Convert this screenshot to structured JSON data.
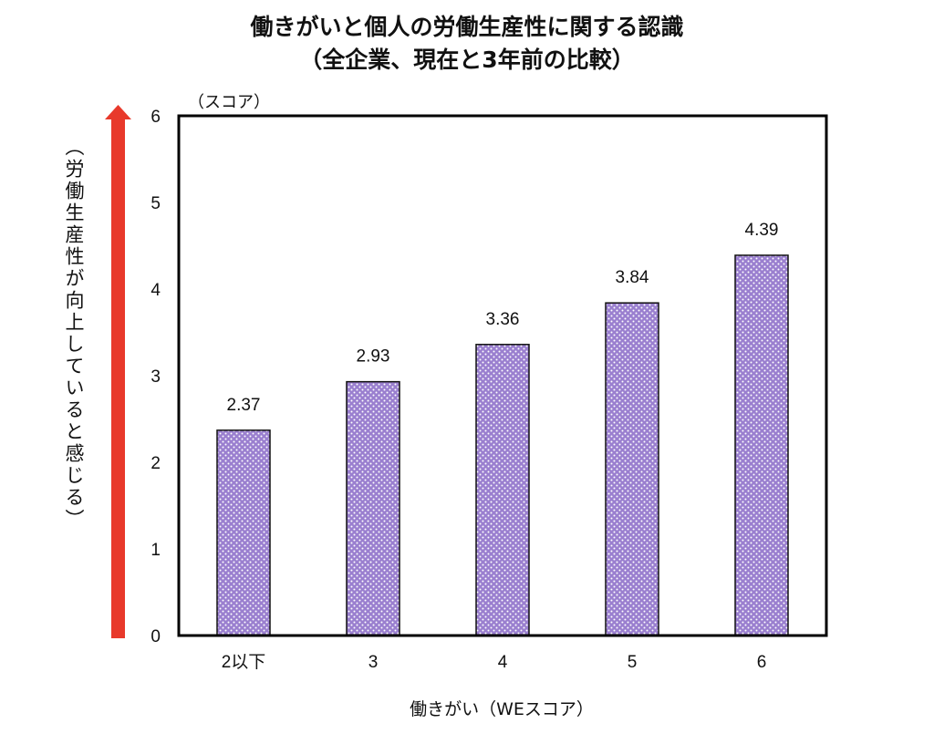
{
  "chart_data": {
    "type": "bar",
    "title": "働きがいと個人の労働生産性に関する認識",
    "subtitle": "（全企業、現在と3年前の比較）",
    "unit_label": "（スコア）",
    "ylabel": "（労働生産性が向上していると感じる）",
    "xlabel": "働きがい（WEスコア）",
    "categories": [
      "2以下",
      "3",
      "4",
      "5",
      "6"
    ],
    "values": [
      2.37,
      2.93,
      3.36,
      3.84,
      4.39
    ],
    "data_labels": [
      "2.37",
      "2.93",
      "3.36",
      "3.84",
      "4.39"
    ],
    "ylim": [
      0,
      6
    ],
    "yticks": [
      "0",
      "1",
      "2",
      "3",
      "4",
      "5",
      "6"
    ],
    "grid": false,
    "colors": {
      "bar": "#9a7fcf",
      "bar_dots": "#ffffff",
      "arrow": "#e8392b"
    }
  }
}
